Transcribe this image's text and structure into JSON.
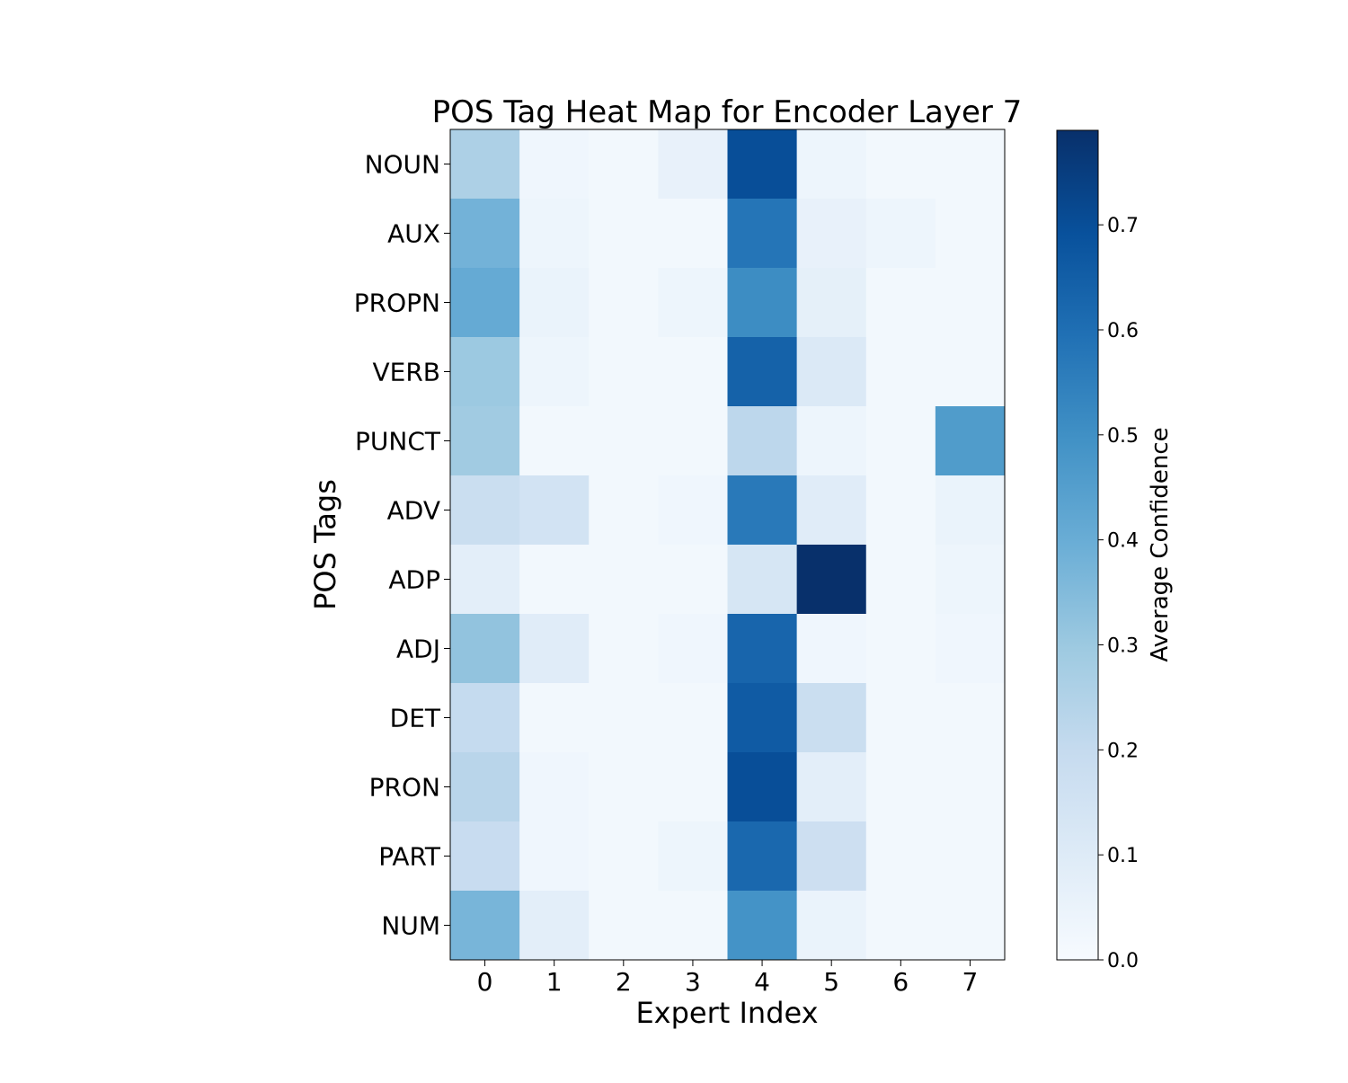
{
  "chart_data": {
    "type": "heatmap",
    "title": "POS Tag Heat Map for Encoder Layer 7",
    "xlabel": "Expert Index",
    "ylabel": "POS Tags",
    "x_categories": [
      "0",
      "1",
      "2",
      "3",
      "4",
      "5",
      "6",
      "7"
    ],
    "y_categories": [
      "NOUN",
      "AUX",
      "PROPN",
      "VERB",
      "PUNCT",
      "ADV",
      "ADP",
      "ADJ",
      "DET",
      "PRON",
      "PART",
      "NUM"
    ],
    "values": [
      [
        0.26,
        0.03,
        0.02,
        0.06,
        0.7,
        0.04,
        0.02,
        0.02
      ],
      [
        0.38,
        0.04,
        0.02,
        0.02,
        0.58,
        0.06,
        0.04,
        0.02
      ],
      [
        0.41,
        0.05,
        0.02,
        0.04,
        0.51,
        0.07,
        0.02,
        0.02
      ],
      [
        0.3,
        0.04,
        0.02,
        0.02,
        0.64,
        0.11,
        0.02,
        0.02
      ],
      [
        0.29,
        0.02,
        0.02,
        0.02,
        0.22,
        0.04,
        0.02,
        0.46
      ],
      [
        0.18,
        0.15,
        0.02,
        0.03,
        0.57,
        0.09,
        0.02,
        0.05
      ],
      [
        0.08,
        0.02,
        0.02,
        0.02,
        0.13,
        0.79,
        0.02,
        0.04
      ],
      [
        0.32,
        0.09,
        0.02,
        0.03,
        0.63,
        0.03,
        0.02,
        0.03
      ],
      [
        0.2,
        0.02,
        0.02,
        0.02,
        0.66,
        0.18,
        0.02,
        0.02
      ],
      [
        0.23,
        0.03,
        0.02,
        0.02,
        0.7,
        0.08,
        0.02,
        0.02
      ],
      [
        0.19,
        0.03,
        0.02,
        0.04,
        0.62,
        0.17,
        0.02,
        0.02
      ],
      [
        0.37,
        0.08,
        0.02,
        0.02,
        0.49,
        0.05,
        0.02,
        0.02
      ]
    ],
    "colorbar": {
      "label": "Average Confidence",
      "range": [
        0.0,
        0.79
      ],
      "ticks": [
        "0.0",
        "0.1",
        "0.2",
        "0.3",
        "0.4",
        "0.5",
        "0.6",
        "0.7"
      ],
      "tick_values": [
        0.0,
        0.1,
        0.2,
        0.3,
        0.4,
        0.5,
        0.6,
        0.7
      ]
    },
    "colormap": "Blues",
    "colormap_stops": [
      "#f7fbff",
      "#deebf7",
      "#c6dbef",
      "#9ecae1",
      "#6baed6",
      "#4292c6",
      "#2171b5",
      "#08519c",
      "#08306b"
    ],
    "grid": false
  }
}
